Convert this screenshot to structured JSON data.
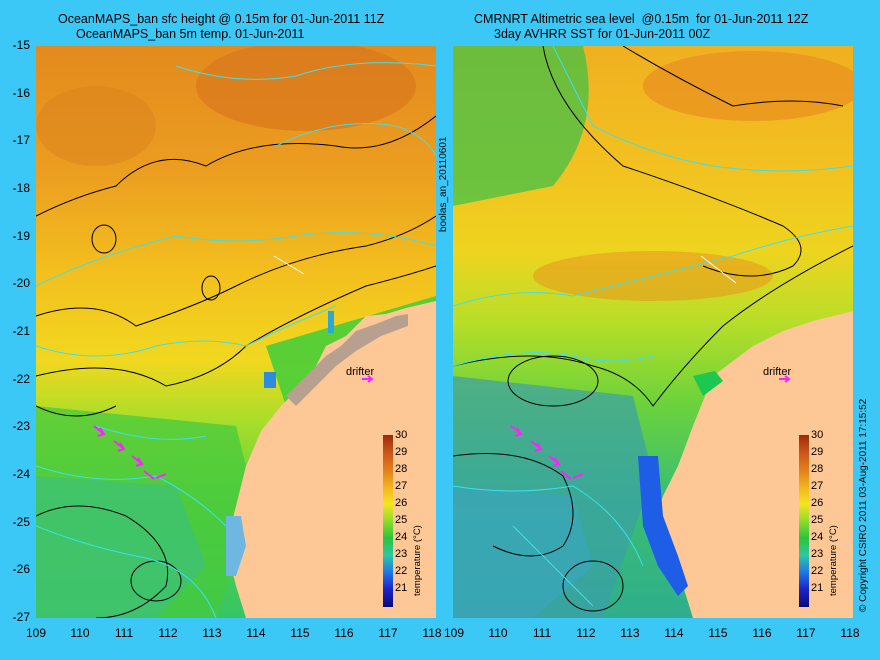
{
  "titles": {
    "left_line1": "OceanMAPS_ban sfc height @ 0.15m for 01-Jun-2011 11Z",
    "left_line2": "OceanMAPS_ban 5m temp. 01-Jun-2011",
    "right_line1": "CMRNRT Altimetric sea level  @0.15m  for 01-Jun-2011 12Z",
    "right_line2": "3day AVHRR SST for 01-Jun-2011 00Z"
  },
  "y_ticks": [
    "-15",
    "-16",
    "-17",
    "-18",
    "-19",
    "-20",
    "-21",
    "-22",
    "-23",
    "-24",
    "-25",
    "-26",
    "-27"
  ],
  "x_ticks": [
    "109",
    "110",
    "111",
    "112",
    "113",
    "114",
    "115",
    "116",
    "117",
    "118"
  ],
  "colorbar": {
    "labels": [
      "30",
      "29",
      "28",
      "27",
      "26",
      "25",
      "24",
      "23",
      "22",
      "21"
    ],
    "title": "temperature (°C)",
    "colors": [
      "#9e2a0c",
      "#c9541a",
      "#e07e1c",
      "#f2b21c",
      "#f5e51e",
      "#8fdc2c",
      "#29c43c",
      "#2ec7a6",
      "#1e77e6",
      "#1a24c6",
      "#0a0a78"
    ]
  },
  "drifter_label": "drifter",
  "side_label": "boolas_an_20110601",
  "copyright": "© Copyright CSIRO 2011   03-Aug-2011 17:15:52",
  "colors": {
    "background": "#3cc8f6",
    "land": "#fdc896",
    "drifter": "#ff20ff",
    "contour": "#000000",
    "contour_light": "#3ce0ee"
  }
}
